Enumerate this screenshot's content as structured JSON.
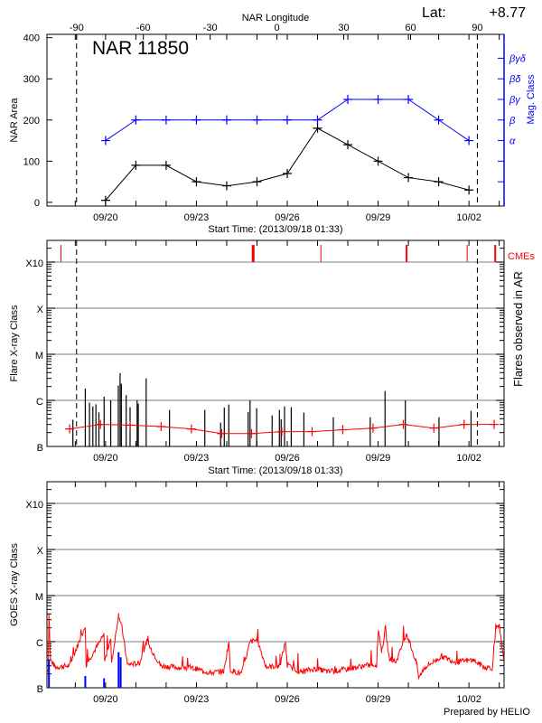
{
  "header": {
    "lat_label": "Lat:",
    "lat_value": "+8.77",
    "credit": "Prepared by HELIO"
  },
  "colors": {
    "area": "#000000",
    "mag_class": "#0000ff",
    "flare": "#000000",
    "background": "#ff0000",
    "cme": "#ff0000",
    "goes_long": "#ff0000",
    "goes_short": "#0000ff",
    "grid": "#999999"
  },
  "chart_data": [
    {
      "type": "line",
      "title": "NAR 11850",
      "xlabel": "Start Time: (2013/09/18 01:33)",
      "ylabel": "NAR Area",
      "y2label": "Mag. Class",
      "top_axis_label": "NAR Longitude",
      "xlim": [
        "09/18 01:33",
        "10/03 03:50"
      ],
      "ylim": [
        -9,
        408
      ],
      "x_tick_labels": [
        "09/20",
        "09/23",
        "09/26",
        "09/29",
        "10/02"
      ],
      "y_tick_labels": [
        "0",
        "100",
        "200",
        "300",
        "400"
      ],
      "top_tick_labels": [
        "-90",
        "-60",
        "-30",
        "0",
        "30",
        "60",
        "90"
      ],
      "mag_class_levels": [
        "α",
        "β",
        "βγ",
        "βδ",
        "βγδ"
      ],
      "limb_crossings": [
        "09/19 01:00",
        "10/02 06:40"
      ],
      "x": [
        "09/20 00:00",
        "09/21 00:00",
        "09/22 00:00",
        "09/23 00:00",
        "09/24 00:00",
        "09/25 00:00",
        "09/26 00:00",
        "09/27 00:00",
        "09/28 00:00",
        "09/29 00:00",
        "09/30 00:00",
        "10/01 00:00",
        "10/02 00:00"
      ],
      "series": [
        {
          "name": "NAR Area",
          "values": [
            5,
            90,
            90,
            50,
            40,
            50,
            70,
            180,
            140,
            100,
            60,
            50,
            30
          ]
        },
        {
          "name": "Mag. Class",
          "values": [
            "α",
            "β",
            "β",
            "β",
            "β",
            "β",
            "β",
            "β",
            "βγ",
            "βγ",
            "βγ",
            "β",
            "α"
          ]
        }
      ]
    },
    {
      "type": "bar",
      "xlabel": "Start Time: (2013/09/18 01:33)",
      "ylabel": "Flare X-ray Class",
      "y2label": "Flares observed in AR",
      "cme_label": "CMEs",
      "xlim": [
        "09/18 01:33",
        "10/03 03:50"
      ],
      "y_scale": "log",
      "y_tick_labels": [
        "B",
        "C",
        "M",
        "X",
        "X10"
      ],
      "x_tick_labels": [
        "09/20",
        "09/23",
        "09/26",
        "09/29",
        "10/02"
      ],
      "grid": true,
      "flares": [
        [
          "09/18 22:05",
          "B3.8"
        ],
        [
          "09/19 07:55",
          "C1.8"
        ],
        [
          "09/19 11:15",
          "B8.9"
        ],
        [
          "09/19 13:55",
          "B7.4"
        ],
        [
          "09/19 16:20",
          "B8.2"
        ],
        [
          "09/19 18:43",
          "B5.5"
        ],
        [
          "09/19 22:50",
          "C1.2"
        ],
        [
          "09/20 04:05",
          "C1.0"
        ],
        [
          "09/20 10:05",
          "C2.1"
        ],
        [
          "09/20 11:30",
          "C3.9"
        ],
        [
          "09/20 12:30",
          "C2.3"
        ],
        [
          "09/20 16:20",
          "C1.3"
        ],
        [
          "09/20 19:25",
          "B7.1"
        ],
        [
          "09/21 01:00",
          "C1.0"
        ],
        [
          "09/21 01:55",
          "B8.5"
        ],
        [
          "09/21 08:10",
          "C3.0"
        ],
        [
          "09/22 02:40",
          "B6.2"
        ],
        [
          "09/23 06:40",
          "B6.2"
        ],
        [
          "09/23 19:10",
          "B3.3"
        ],
        [
          "09/23 22:05",
          "B7.0"
        ],
        [
          "09/24 01:40",
          "B8.1"
        ],
        [
          "09/24 17:00",
          "B5.6"
        ],
        [
          "09/24 18:30",
          "C1.0"
        ],
        [
          "09/24 23:45",
          "B6.8"
        ],
        [
          "09/25 12:00",
          "B4.7"
        ],
        [
          "09/25 17:45",
          "B6.2"
        ],
        [
          "09/25 19:10",
          "B3.9"
        ],
        [
          "09/25 21:50",
          "B7.4"
        ],
        [
          "09/26 03:10",
          "B7.1"
        ],
        [
          "09/26 13:10",
          "B5.4"
        ],
        [
          "09/27 12:30",
          "B4.3"
        ],
        [
          "09/28 17:45",
          "B4.3"
        ],
        [
          "09/29 05:30",
          "C1.6"
        ],
        [
          "09/29 21:35",
          "C1.0"
        ],
        [
          "10/01 00:15",
          "B4.3"
        ],
        [
          "10/02 01:40",
          "B5.9"
        ]
      ],
      "background": [
        [
          "09/18 19:30",
          "B2.4"
        ],
        [
          "09/19 20:00",
          "B3.0"
        ],
        [
          "09/20 19:30",
          "B2.9"
        ],
        [
          "09/21 20:00",
          "B2.7"
        ],
        [
          "09/22 20:00",
          "B2.4"
        ],
        [
          "09/23 20:00",
          "B1.9"
        ],
        [
          "09/24 19:40",
          "B1.9"
        ],
        [
          "09/25 19:40",
          "B2.1"
        ],
        [
          "09/26 19:40",
          "B2.1"
        ],
        [
          "09/27 20:00",
          "B2.3"
        ],
        [
          "09/28 20:00",
          "B2.5"
        ],
        [
          "09/29 20:00",
          "B3.0"
        ],
        [
          "09/30 20:10",
          "B2.5"
        ],
        [
          "10/01 20:10",
          "B3.0"
        ],
        [
          "10/02 20:00",
          "B3.0"
        ]
      ],
      "cmes": [
        [
          "09/18 12:40",
          1
        ],
        [
          "09/24 21:00",
          3
        ],
        [
          "09/27 02:40",
          1
        ],
        [
          "09/29 22:35",
          2
        ],
        [
          "10/01 22:35",
          1
        ],
        [
          "10/02 20:50",
          2
        ]
      ]
    },
    {
      "type": "line",
      "ylabel": "GOES X-ray Class",
      "xlim": [
        "09/18 01:33",
        "10/03 03:50"
      ],
      "y_scale": "log",
      "y_tick_labels": [
        "B",
        "C",
        "M",
        "X",
        "X10"
      ],
      "x_tick_labels": [
        "09/20",
        "09/23",
        "09/26",
        "09/29",
        "10/02"
      ],
      "grid": true,
      "long_channel": [
        [
          "09/18 01:33",
          "B2.6"
        ],
        [
          "09/18 02:38",
          "B2.6"
        ],
        [
          "09/18 03:07",
          "C4.0"
        ],
        [
          "09/18 04:19",
          "B4.0"
        ],
        [
          "09/18 08:10",
          "B2.8"
        ],
        [
          "09/18 19:26",
          "B3.0"
        ],
        [
          "09/19 07:55",
          "C2.2"
        ],
        [
          "09/19 08:38",
          "B3.2"
        ],
        [
          "09/19 22:48",
          "C1.4"
        ],
        [
          "09/19 23:17",
          "B3.8"
        ],
        [
          "09/20 04:05",
          "C1.1"
        ],
        [
          "09/20 04:48",
          "B3.6"
        ],
        [
          "09/20 10:19",
          "C3.9"
        ],
        [
          "09/20 12:58",
          "C2.0"
        ],
        [
          "09/20 17:17",
          "B3.2"
        ],
        [
          "09/21 02:53",
          "B3.4"
        ],
        [
          "09/21 08:38",
          "C1.0"
        ],
        [
          "09/21 19:41",
          "B3.0"
        ],
        [
          "09/22 12:29",
          "B2.7"
        ],
        [
          "09/22 23:31",
          "B2.6"
        ],
        [
          "09/23 10:34",
          "B2.1"
        ],
        [
          "09/23 21:50",
          "B2.3"
        ],
        [
          "09/24 01:41",
          "C1.0"
        ],
        [
          "09/24 02:53",
          "B2.4"
        ],
        [
          "09/24 11:46",
          "B2.0"
        ],
        [
          "09/24 18:43",
          "C1.0"
        ],
        [
          "09/25 00:14",
          "C1.1"
        ],
        [
          "09/25 07:12",
          "B2.8"
        ],
        [
          "09/25 18:14",
          "B3.0"
        ],
        [
          "09/25 22:34",
          "C1.0"
        ],
        [
          "09/26 00:00",
          "B3.0"
        ],
        [
          "09/26 11:02",
          "B2.2"
        ],
        [
          "09/26 22:05",
          "B2.6"
        ],
        [
          "09/27 09:22",
          "B2.2"
        ],
        [
          "09/28 01:55",
          "B2.6"
        ],
        [
          "09/28 12:58",
          "B3.0"
        ],
        [
          "09/28 22:48",
          "B3.2"
        ],
        [
          "09/29 00:14",
          "C1.9"
        ],
        [
          "09/29 02:53",
          "B6.0"
        ],
        [
          "09/29 05:46",
          "C2.0"
        ],
        [
          "09/29 08:38",
          "B4.5"
        ],
        [
          "09/29 14:10",
          "B3.6"
        ],
        [
          "09/29 22:34",
          "C1.5"
        ],
        [
          "09/30 06:43",
          "B3.2"
        ],
        [
          "09/30 08:10",
          "B1.6"
        ],
        [
          "09/30 12:29",
          "B2.7"
        ],
        [
          "10/01 02:24",
          "B4.8"
        ],
        [
          "10/01 13:26",
          "B3.6"
        ],
        [
          "10/02 03:22",
          "B4.0"
        ],
        [
          "10/02 11:46",
          "B2.8"
        ],
        [
          "10/02 18:43",
          "B2.7"
        ],
        [
          "10/02 21:22",
          "C1.9"
        ],
        [
          "10/03 00:14",
          "C2.1"
        ],
        [
          "10/03 02:30",
          "B6.0"
        ],
        [
          "10/03 03:50",
          "B4.0"
        ]
      ],
      "short_channel": [
        [
          "09/18 03:07",
          "B4.1"
        ],
        [
          "09/19 07:55",
          "B1.8"
        ],
        [
          "09/19 22:48",
          "B1.6"
        ],
        [
          "09/20 10:19",
          "B5.9"
        ],
        [
          "09/20 11:58",
          "B4.6"
        ]
      ]
    }
  ]
}
